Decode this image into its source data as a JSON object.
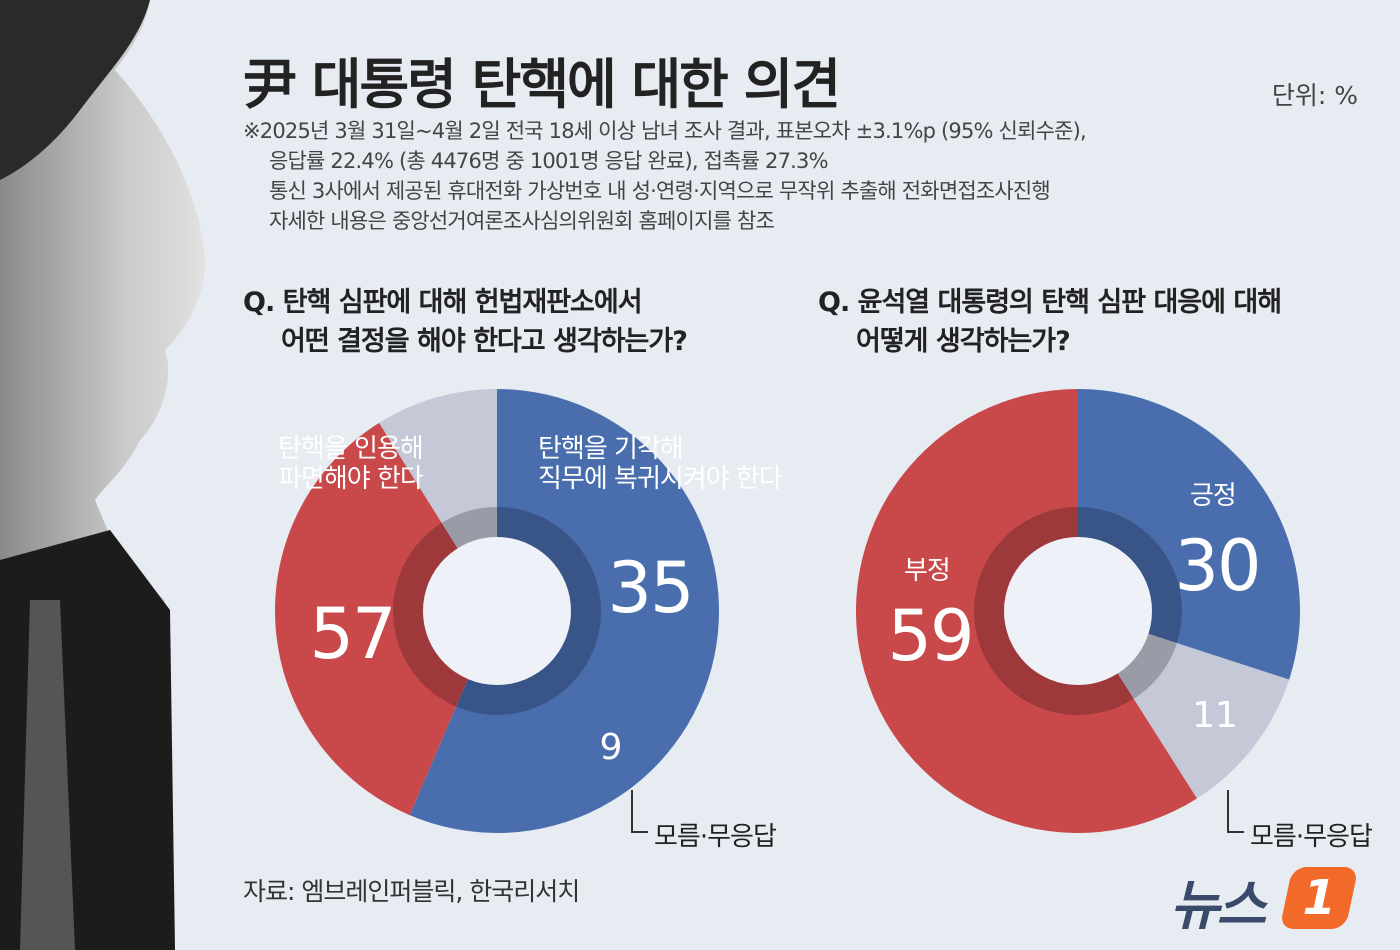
{
  "title": "尹 대통령 탄핵에 대한 의견",
  "unit": "단위: %",
  "notes": [
    "※2025년 3월 31일~4월 2일 전국 18세 이상 남녀 조사 결과, 표본오차 ±3.1%p (95% 신뢰수준),",
    "응답률 22.4% (총 4476명 중 1001명 응답 완료), 접촉률 27.3%",
    "통신 3사에서 제공된 휴대전화 가상번호 내 성·연령·지역으로 무작위 추출해 전화면접조사진행",
    "자세한 내용은 중앙선거여론조사심의위원회 홈페이지를 참조"
  ],
  "source": "자료: 엠브레인퍼블릭, 한국리서치",
  "logo": {
    "text": "뉴스",
    "badge": "1"
  },
  "colors": {
    "blue": "#4a6ead",
    "red": "#c9494b",
    "gray": "#c5c8d7",
    "background": "#e7ebf2"
  },
  "chart_data": [
    {
      "type": "pie",
      "donut": true,
      "question": [
        "Q. 탄핵 심판에 대해 헌법재판소에서",
        "어떤 결정을 해야 한다고 생각하는가?"
      ],
      "labels": [
        "탄핵을 인용해 파면해야 한다",
        "탄핵을 기각해 직무에 복귀시켜야 한다",
        "모름·무응답"
      ],
      "label_lines": [
        [
          "탄핵을 인용해",
          "파면해야 한다"
        ],
        [
          "탄핵을 기각해",
          "직무에 복귀시켜야 한다"
        ],
        [
          "모름·무응답"
        ]
      ],
      "values": [
        57,
        35,
        9
      ],
      "value_labels": [
        "57",
        "35",
        "9"
      ],
      "colors": [
        "#4a6ead",
        "#c9494b",
        "#c5c8d7"
      ]
    },
    {
      "type": "pie",
      "donut": true,
      "question": [
        "Q. 윤석열 대통령의 탄핵 심판 대응에 대해",
        "어떻게 생각하는가?"
      ],
      "labels": [
        "긍정",
        "모름·무응답",
        "부정"
      ],
      "values": [
        30,
        11,
        59
      ],
      "value_labels": [
        "30",
        "11",
        "59"
      ],
      "colors": [
        "#4a6ead",
        "#c5c8d7",
        "#c9494b"
      ]
    }
  ]
}
